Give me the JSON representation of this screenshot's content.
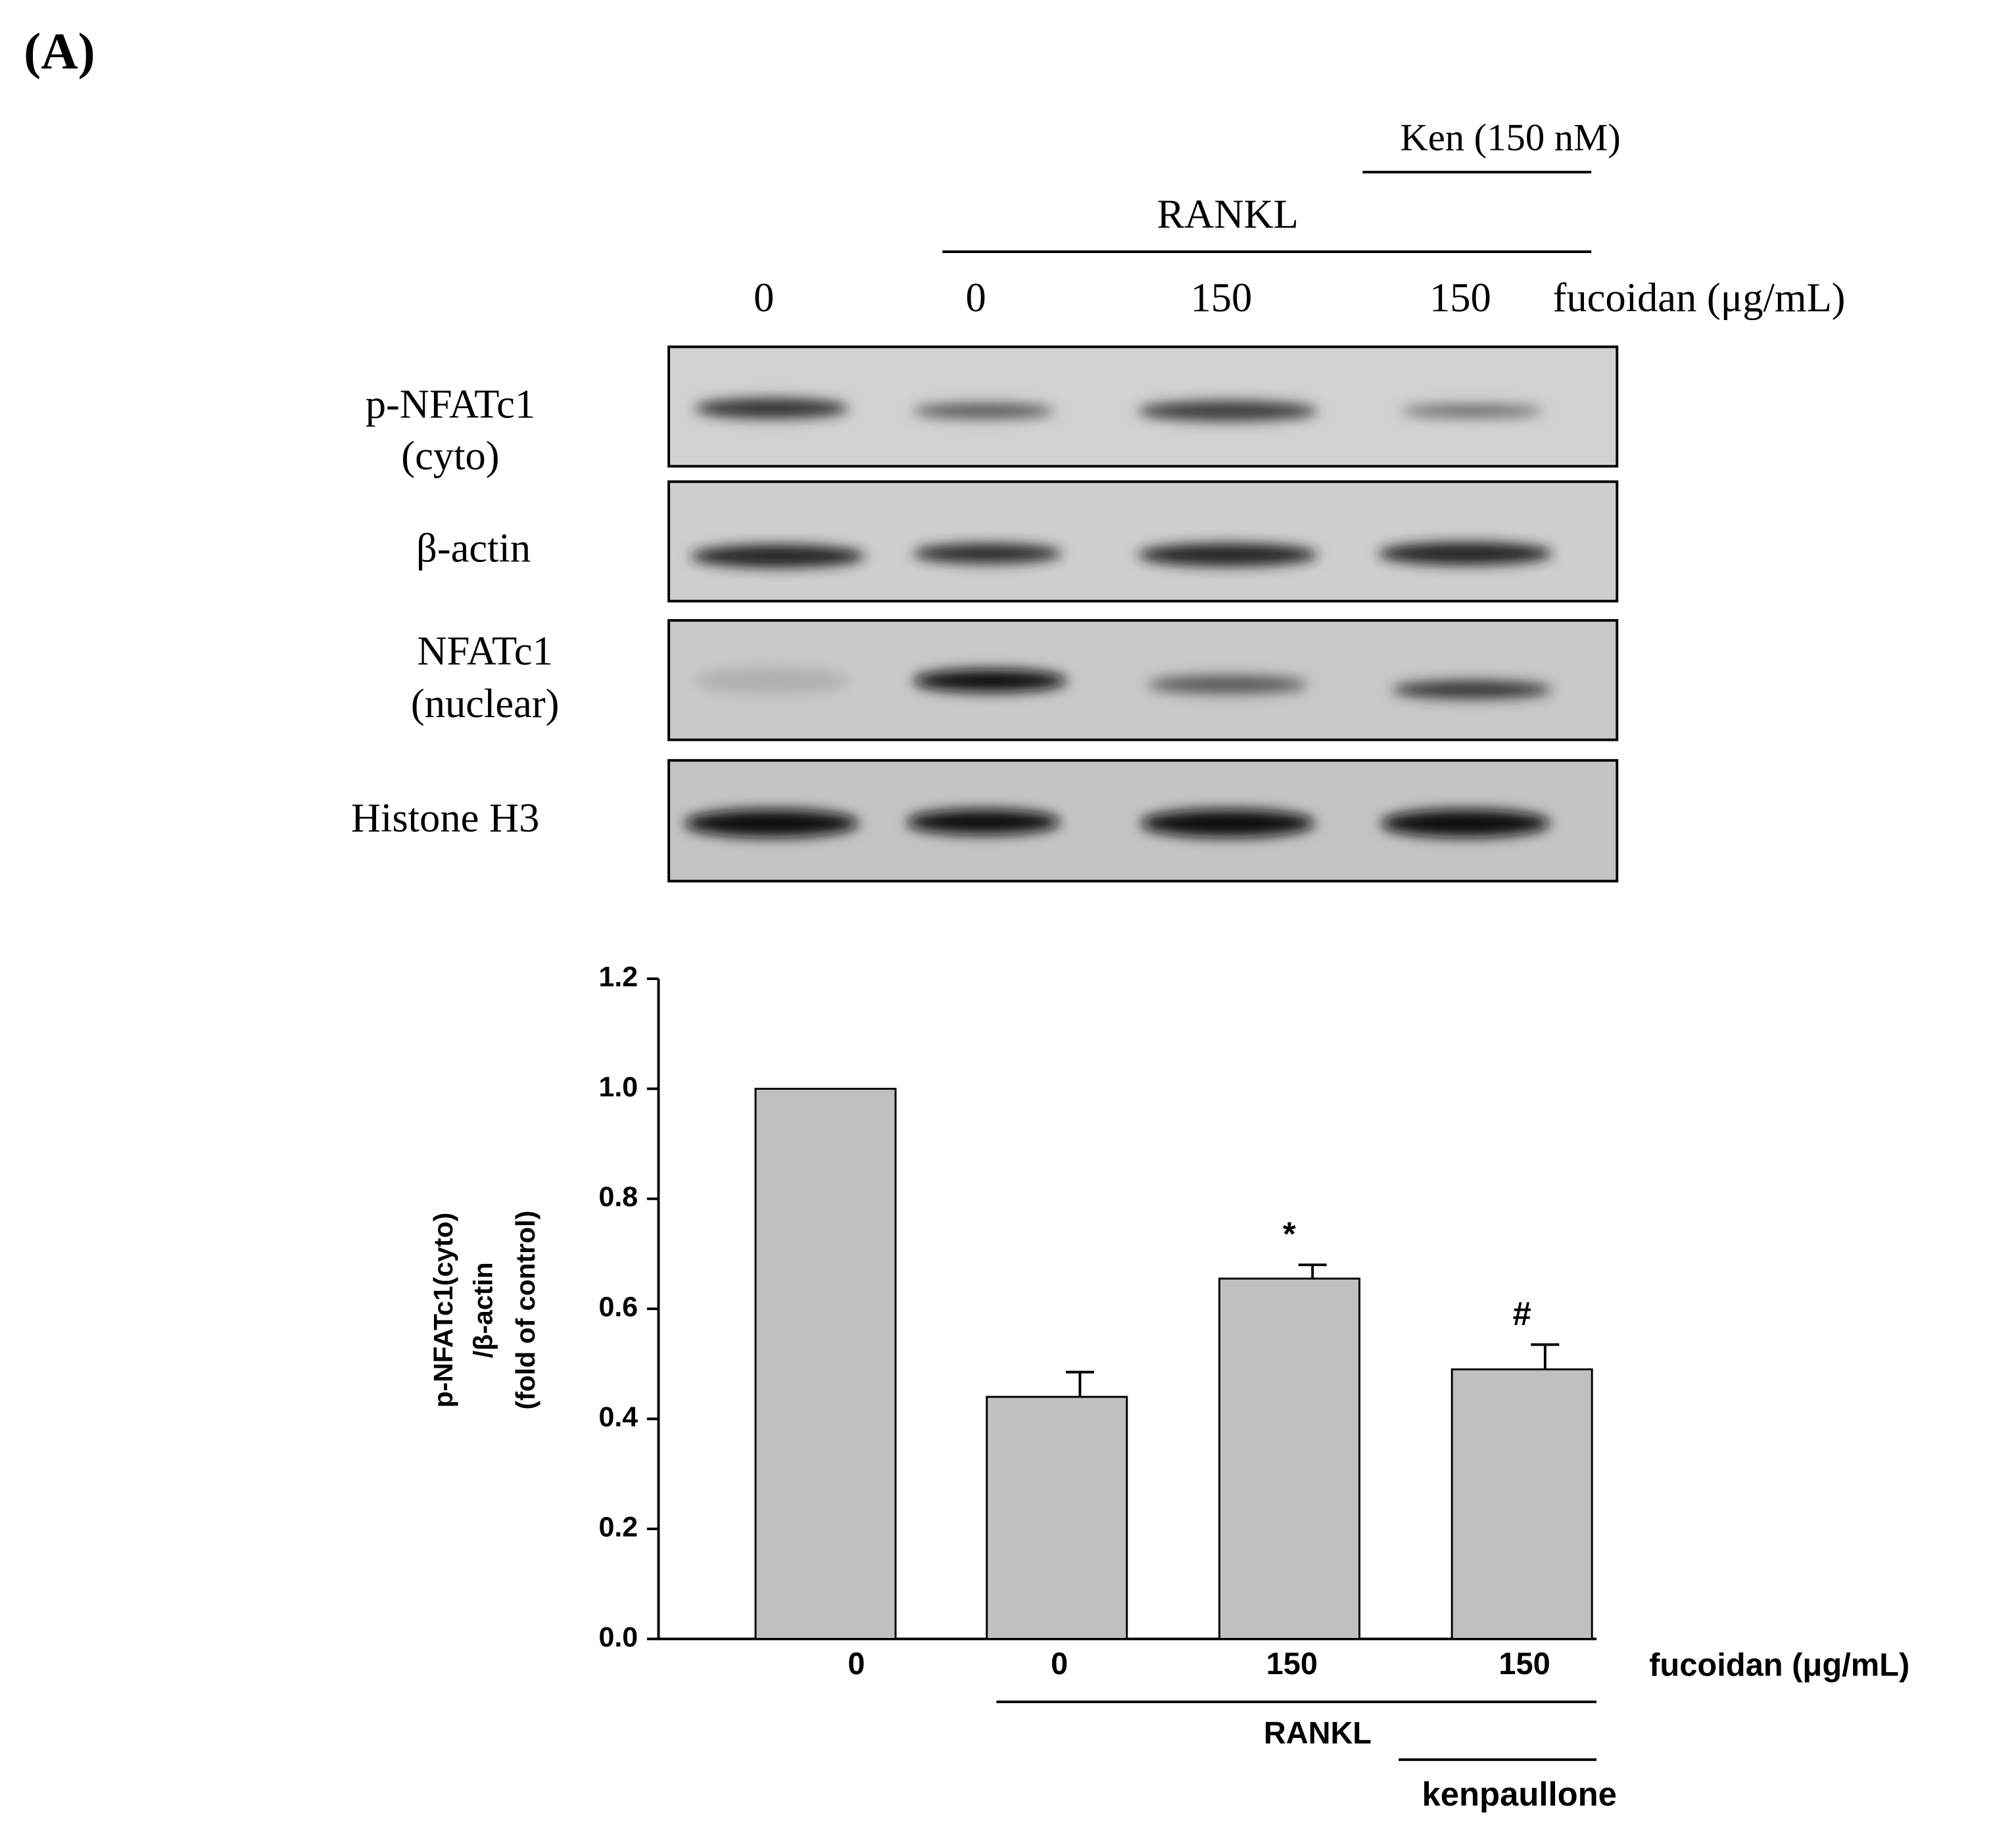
{
  "panel_label": "(A)",
  "blot": {
    "treatment_top": "Ken (150 nM)",
    "treatment_mid": "RANKL",
    "lanes": [
      "0",
      "0",
      "150",
      "150"
    ],
    "dose_label": "fucoidan (μg/mL)",
    "rows": [
      [
        "p-NFATc1",
        "(cyto)"
      ],
      [
        "β-actin"
      ],
      [
        "NFATc1",
        "(nuclear)"
      ],
      [
        "Histone H3"
      ]
    ]
  },
  "chart_data": {
    "type": "bar",
    "y_label": [
      "p-NFATc1(cyto)",
      "/β-actin",
      "(fold of control)"
    ],
    "categories": [
      "0",
      "0",
      "150",
      "150"
    ],
    "x_label": "fucoidan (μg/mL)",
    "values": [
      1.0,
      0.44,
      0.655,
      0.49
    ],
    "errors": [
      0,
      0.045,
      0.025,
      0.045
    ],
    "significance": [
      null,
      null,
      "*",
      "#"
    ],
    "groups": [
      "RANKL",
      "kenpaullone"
    ],
    "color": "#c0c0c0",
    "ylim": [
      0,
      1.2
    ],
    "yticks": [
      {
        "value": 0,
        "label": "0.0"
      },
      0.2,
      0.4,
      0.6,
      0.8,
      {
        "value": 1,
        "label": "1.0"
      },
      1.2
    ]
  }
}
